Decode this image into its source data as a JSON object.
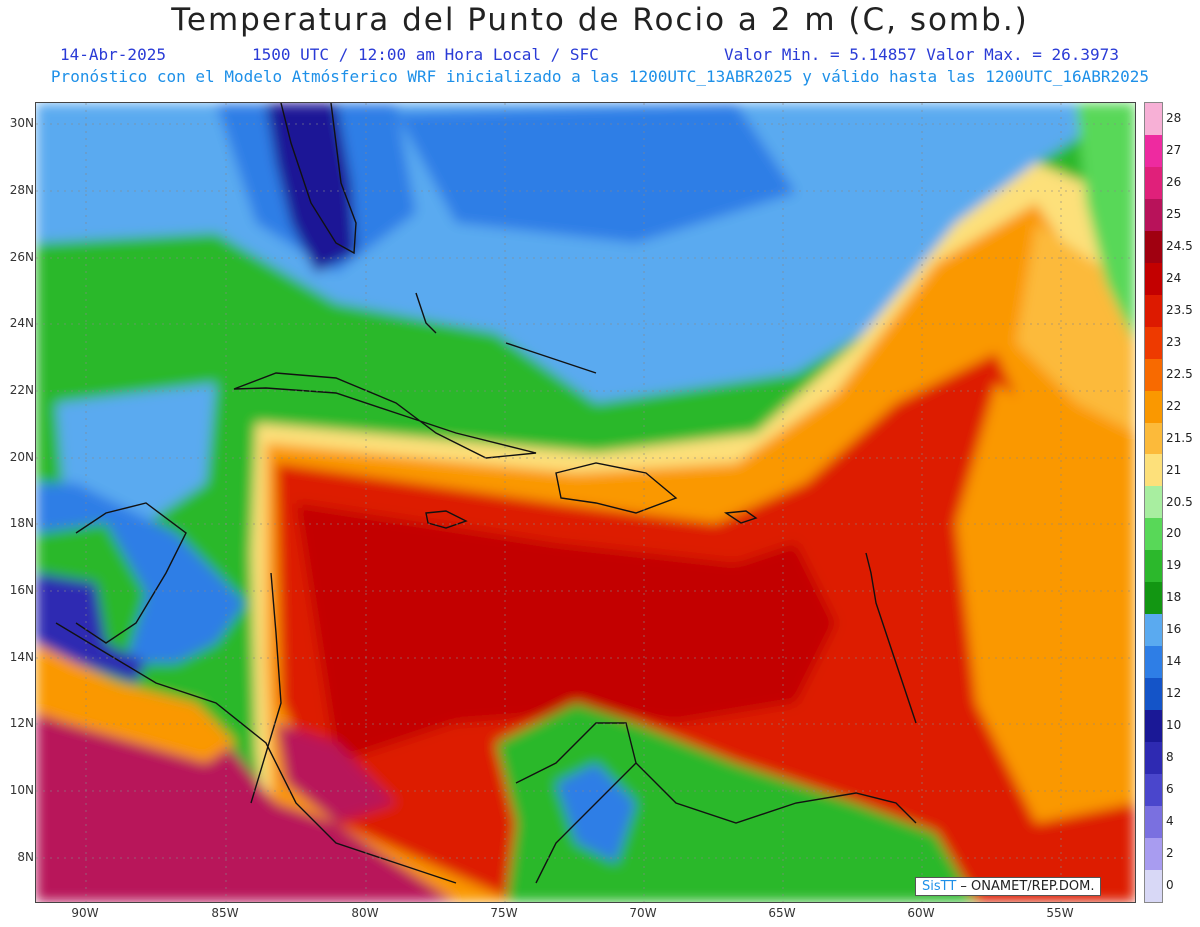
{
  "header": {
    "title": "Temperatura del Punto de Rocio a 2 m (C, somb.)",
    "date": "14-Abr-2025",
    "time": "1500 UTC / 12:00 am Hora Local / SFC",
    "minmax": "Valor Min. = 5.14857  Valor Max. = 26.3973",
    "model_line": "Pronóstico con el Modelo Atmósferico WRF inicializado a las 1200UTC_13ABR2025 y válido hasta las  1200UTC_16ABR2025"
  },
  "axes": {
    "lat_labels": [
      "30N",
      "28N",
      "26N",
      "24N",
      "22N",
      "20N",
      "18N",
      "16N",
      "14N",
      "12N",
      "10N",
      "8N"
    ],
    "lon_labels": [
      "90W",
      "85W",
      "80W",
      "75W",
      "70W",
      "65W",
      "60W",
      "55W"
    ]
  },
  "colorbar": {
    "labels": [
      "28",
      "27",
      "26",
      "25",
      "24.5",
      "24",
      "23.5",
      "23",
      "22.5",
      "22",
      "21.5",
      "21",
      "20.5",
      "20",
      "19",
      "18",
      "16",
      "14",
      "12",
      "10",
      "8",
      "6",
      "4",
      "2",
      "0"
    ],
    "colors": [
      "#f7b0d6",
      "#ee2aa0",
      "#e0207a",
      "#b8125a",
      "#a00010",
      "#c30000",
      "#dd1a00",
      "#ee3a00",
      "#f86a00",
      "#fa9800",
      "#fcba3a",
      "#fde07a",
      "#a8eea0",
      "#58d858",
      "#2cb82c",
      "#129612",
      "#5aaaf0",
      "#2e7ee6",
      "#1454c8",
      "#1a1896",
      "#2e2ab2",
      "#4a46cc",
      "#7a70e0",
      "#a89cf0",
      "#d8d8f6"
    ]
  },
  "credit": {
    "logo": "SisTT",
    "text": " – ONAMET/REP.DOM."
  }
}
